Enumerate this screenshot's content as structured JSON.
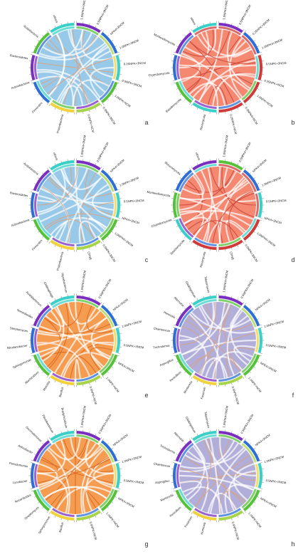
{
  "figure": {
    "panels": [
      {
        "letter": "a",
        "fill": "#8ec3e6",
        "chord": "#d9a27e",
        "seg_colors": [
          "#7b2fbe",
          "#2d6fd6",
          "#3ad0c8",
          "#56c23a",
          "#a8d44a",
          "#f0d23a",
          "#2d6fd6",
          "#7b2fbe",
          "#56c23a",
          "#3ad0c8"
        ],
        "treatments": [
          "1.0NPK4+3NCM",
          "0.5NPK4+3NCM",
          "NPK4+3NCM",
          "1.0NPK+3NCM",
          "0.25NPK+3NCM",
          "0.5NPK+3NCM",
          "1.0NPK+NCM",
          "0.5NPK+3NCM",
          "0.5NPK+NCM"
        ],
        "taxa": [
          "Proteobacteria",
          "Firmicutes",
          "Actinobacteria",
          "Bacteroidetes",
          "Acidobacteria",
          "others"
        ]
      },
      {
        "letter": "b",
        "fill": "#f47b62",
        "chord": "#c9453a",
        "seg_colors": [
          "#7b2fbe",
          "#2d6fd6",
          "#d03a3a",
          "#d03a3a",
          "#d03a3a",
          "#3ad0c8",
          "#56c23a",
          "#2d6fd6",
          "#7b2fbe",
          "#3ad0c8"
        ],
        "treatments": [
          "1.0NPK4+3NCM",
          "0.5NPK4+3NCM",
          "0.25NPK+3NCM",
          "1.0NPK4+3NCM",
          "0.5NPK+3NCM",
          "0.25NPK+NCM",
          "1.0NPK+NCM",
          "0.5NPK4+NCM",
          "0.25NPK+NCM"
        ],
        "taxa": [
          "Ascomycota",
          "Basidiomycota",
          "Chytridiomycota",
          "Mortierellomycota",
          "others"
        ]
      },
      {
        "letter": "c",
        "fill": "#8ec3e6",
        "chord": "#d9a27e",
        "seg_colors": [
          "#7b2fbe",
          "#2d6fd6",
          "#3ad0c8",
          "#56c23a",
          "#a8d44a",
          "#f0d23a",
          "#56c23a",
          "#2d6fd6",
          "#7b2fbe",
          "#3ad0c8"
        ],
        "treatments": [
          "1.0NPK4+3NCM",
          "0.5NPK4+3NCM",
          "NPK4+3NCM",
          "1.0NPK+3NCM",
          "0.5NPK+3NCM",
          "NPK4+3NCM",
          "1.0NPK4+3NCM",
          "0.5NPK+3NCM",
          "CPNB"
        ],
        "taxa": [
          "Proteobacteria",
          "Firmicutes",
          "Actinobacteria",
          "Bacteroidetes",
          "Acidobacteria",
          "others"
        ]
      },
      {
        "letter": "d",
        "fill": "#f47b62",
        "chord": "#c9453a",
        "seg_colors": [
          "#56c23a",
          "#2d6fd6",
          "#3ad0c8",
          "#d03a3a",
          "#d03a3a",
          "#d03a3a",
          "#3ad0c8",
          "#56c23a",
          "#2d6fd6",
          "#7b2fbe"
        ],
        "treatments": [
          "1.0NPK4+3NCM",
          "0.5NPK4+3NCM",
          "NPK4+3NCM",
          "1.0NPK+3NCM",
          "0.5NPK+3NCM",
          "NPK4+3NCM",
          "1.0NPK4+3NCM",
          "0.5NPK+3NCM",
          "CPNB"
        ],
        "taxa": [
          "Ascomycota",
          "Basidiomycota",
          "Chytridiomycota",
          "Mortierellomycota",
          "Mucoromycota",
          "others"
        ]
      },
      {
        "letter": "e",
        "fill": "#f4913e",
        "chord": "#d8661e",
        "seg_colors": [
          "#7b2fbe",
          "#2d6fd6",
          "#3ad0c8",
          "#56c23a",
          "#a8d44a",
          "#f0d23a",
          "#56c23a",
          "#2d6fd6",
          "#7b2fbe",
          "#3ad0c8"
        ],
        "treatments": [
          "1.0NPK4+3NCM",
          "0.5NPK4+3NCM",
          "NPK4+3NCM",
          "1.0NPK+3NCM",
          "0.5NPK+3NCM",
          "NPK4+3NCM",
          "1.0NPK+NCM",
          "0.5NPK+NCM"
        ],
        "taxa": [
          "Bacillus",
          "Massilia",
          "Allorhizobium",
          "Sphingomonas",
          "Rhodanobacter",
          "Streptomyces",
          "Nocardioides",
          "Acidobacterium",
          "Chitinophaga",
          "Mycobacterium"
        ]
      },
      {
        "letter": "f",
        "fill": "#a8a6d6",
        "chord": "#d9a27e",
        "seg_colors": [
          "#7b2fbe",
          "#2d6fd6",
          "#3ad0c8",
          "#56c23a",
          "#a8d44a",
          "#f0d23a",
          "#56c23a",
          "#2d6fd6",
          "#7b2fbe",
          "#3ad0c8"
        ],
        "treatments": [
          "1.0NPK4+3NCM",
          "0.5NPK4+3NCM",
          "NPK4+3NCM",
          "1.0NPK+3NCM",
          "0.5NPK+3NCM",
          "NPK4+3NCM",
          "1.0NPK+NCM",
          "0.5NPK+NCM"
        ],
        "taxa": [
          "Fusarium",
          "Mortierella",
          "Penicillium",
          "Aspergillus",
          "Trichoderma",
          "Chaetomium",
          "Humicola",
          "Alternaria",
          "Cladosporium",
          "Talaromyces"
        ]
      },
      {
        "letter": "g",
        "fill": "#f4913e",
        "chord": "#d8661e",
        "seg_colors": [
          "#7b2fbe",
          "#2d6fd6",
          "#3ad0c8",
          "#56c23a",
          "#a8d44a",
          "#f0d23a",
          "#56c23a",
          "#2d6fd6",
          "#7b2fbe",
          "#3ad0c8"
        ],
        "treatments": [
          "1.0NPK4+3NCM",
          "0.5NPK4+3NCM",
          "NPK4+3NCM",
          "1.0NPK+3NCM",
          "0.5NPK+3NCM",
          "NPK4+3NCM",
          "1.0NPK+NCM",
          "0.5NPK+NCM"
        ],
        "taxa": [
          "Bacillus",
          "Sphingomonas",
          "Streptomyces",
          "Nocardioides",
          "Lysobacter",
          "Pseudomonas",
          "Arthrobacter",
          "Gemmatimonas",
          "Flavobacterium",
          "Bradyrhizobium"
        ]
      },
      {
        "letter": "h",
        "fill": "#a8a6d6",
        "chord": "#d9a27e",
        "seg_colors": [
          "#7b2fbe",
          "#2d6fd6",
          "#3ad0c8",
          "#56c23a",
          "#a8d44a",
          "#f0d23a",
          "#56c23a",
          "#2d6fd6",
          "#7b2fbe",
          "#3ad0c8"
        ],
        "treatments": [
          "1.0NPK4+3NCM",
          "0.5NPK4+3NCM",
          "NPK4+3NCM",
          "1.0NPK+3NCM",
          "0.5NPK+3NCM",
          "NPK4+3NCM",
          "1.0NPK+NCM",
          "0.5NPK+NCM"
        ],
        "taxa": [
          "Humicola",
          "Fusarium",
          "Penicillium",
          "Mortierella",
          "Aspergillus",
          "Chaetomium",
          "Trichoderma",
          "Alternaria",
          "Cladosporium",
          "Talaromyces"
        ]
      }
    ]
  }
}
